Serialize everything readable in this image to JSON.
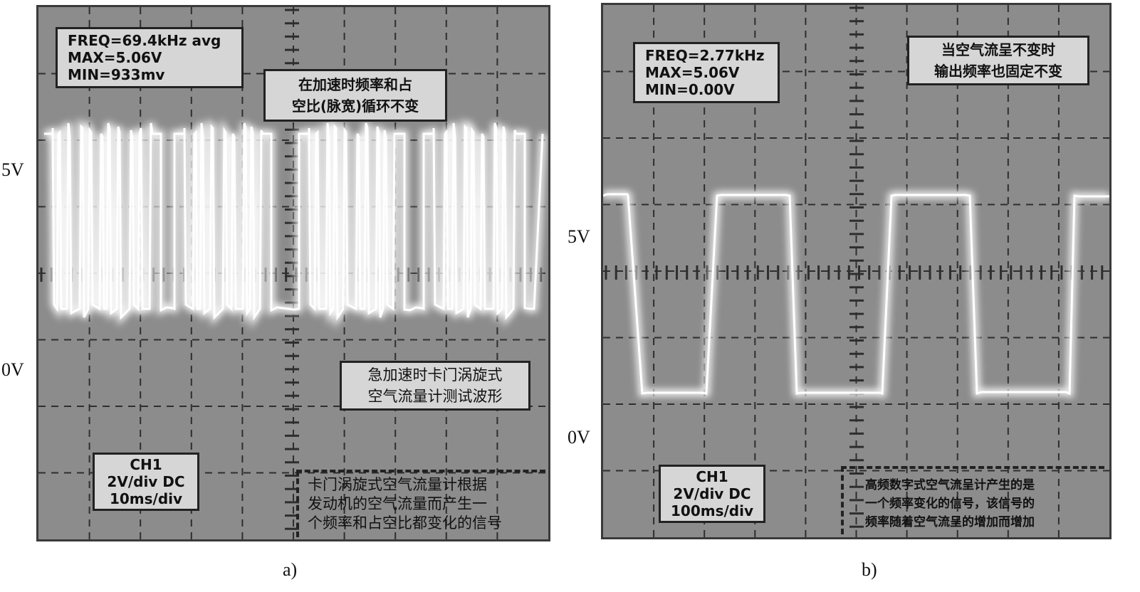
{
  "panel_a": {
    "readout": [
      "FREQ=69.4kHz avg",
      "MAX=5.06V",
      "MIN=933mv"
    ],
    "note_top": [
      "在加速时频率和占",
      "空比(脉宽)循环不变"
    ],
    "note_mid": [
      "急加速时卡门涡旋式",
      "空气流量计测试波形"
    ],
    "channel": [
      "CH1",
      "2V/div DC",
      "10ms/div"
    ],
    "note_bottom": [
      "卡门涡旋式空气流量计根据",
      "发动机的空气流量而产生一",
      "个频率和占空比都变化的信号"
    ],
    "label_5v": "5V",
    "label_0v": "0V",
    "caption": "a)"
  },
  "panel_b": {
    "readout": [
      "FREQ=2.77kHz",
      "MAX=5.06V",
      "MIN=0.00V"
    ],
    "note_top": [
      "当空气流呈不变时",
      "输出频率也固定不变"
    ],
    "channel": [
      "CH1",
      "2V/div DC",
      "100ms/div"
    ],
    "note_bottom": [
      "高频数字式空气流呈计产生的是",
      "一个频率变化的信号，该信号的",
      "频率随着空气流呈的增加而增加"
    ],
    "label_5v": "5V",
    "label_0v": "0V",
    "caption": "b)"
  },
  "colors": {
    "screen": "#8c8c8c",
    "trace": "#ffffff",
    "grid": "#2e2e2e",
    "box": "#d6d6d6"
  }
}
